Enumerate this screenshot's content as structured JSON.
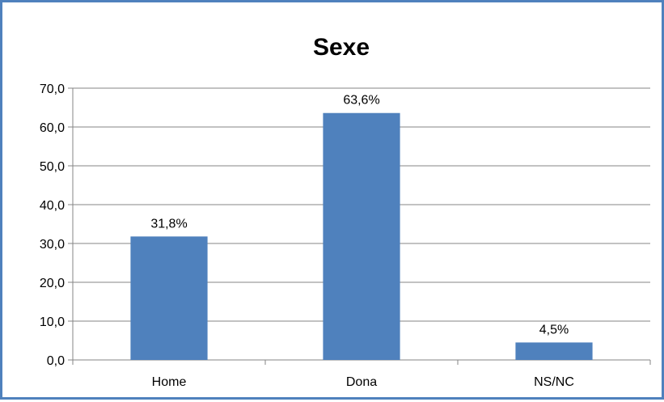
{
  "chart_data": {
    "type": "bar",
    "title": "Sexe",
    "categories": [
      "Home",
      "Dona",
      "NS/NC"
    ],
    "values": [
      31.8,
      63.6,
      4.5
    ],
    "data_labels": [
      "31,8%",
      "63,6%",
      "4,5%"
    ],
    "y_ticks": [
      "0,0",
      "10,0",
      "20,0",
      "30,0",
      "40,0",
      "50,0",
      "60,0",
      "70,0"
    ],
    "ylim": [
      0,
      70
    ],
    "grid": true,
    "legend": false,
    "xlabel": "",
    "ylabel": "",
    "colors": {
      "bar": "#4f81bd",
      "border": "#4f81bd",
      "grid": "#868686"
    }
  }
}
